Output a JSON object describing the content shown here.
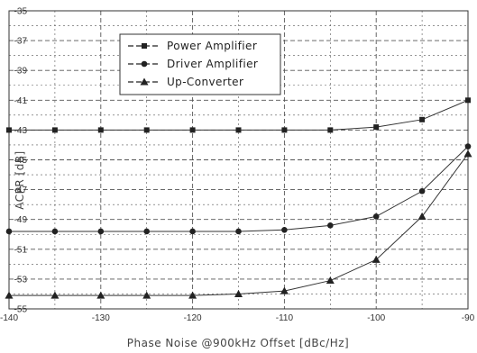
{
  "chart_data": {
    "type": "line",
    "title": "",
    "xlabel": "Phase Noise @900kHz Offset [dBc/Hz]",
    "ylabel": "ACPR [dB]",
    "xlim": [
      -140,
      -90
    ],
    "ylim": [
      -55,
      -35
    ],
    "xticks": [
      -140,
      -130,
      -120,
      -110,
      -100,
      -90
    ],
    "xtick_labels": [
      "-140",
      "-130",
      "-120",
      "-110",
      "-100",
      "-90"
    ],
    "yticks": [
      -55,
      -53,
      -51,
      -49,
      -47,
      -45,
      -43,
      -41,
      -39,
      -37,
      -35
    ],
    "ytick_labels": [
      "-55",
      "-53",
      "-51",
      "-49",
      "-47",
      "-45",
      "-43",
      "-41",
      "-39",
      "-37",
      "-35"
    ],
    "grid": true,
    "legend_position": "top-left",
    "x": [
      -140,
      -135,
      -130,
      -125,
      -120,
      -115,
      -110,
      -105,
      -100,
      -95,
      -90
    ],
    "series": [
      {
        "name": "Power Amplifier",
        "marker": "square",
        "values": [
          -43.0,
          -43.0,
          -43.0,
          -43.0,
          -43.0,
          -43.0,
          -43.0,
          -43.0,
          -42.8,
          -42.3,
          -41.0
        ]
      },
      {
        "name": "Driver Amplifier",
        "marker": "circle",
        "values": [
          -49.8,
          -49.8,
          -49.8,
          -49.8,
          -49.8,
          -49.8,
          -49.7,
          -49.4,
          -48.8,
          -47.1,
          -44.1
        ]
      },
      {
        "name": "Up-Converter",
        "marker": "triangle",
        "values": [
          -54.1,
          -54.1,
          -54.1,
          -54.1,
          -54.1,
          -54.0,
          -53.8,
          -53.1,
          -51.7,
          -48.8,
          -44.6
        ]
      }
    ]
  }
}
